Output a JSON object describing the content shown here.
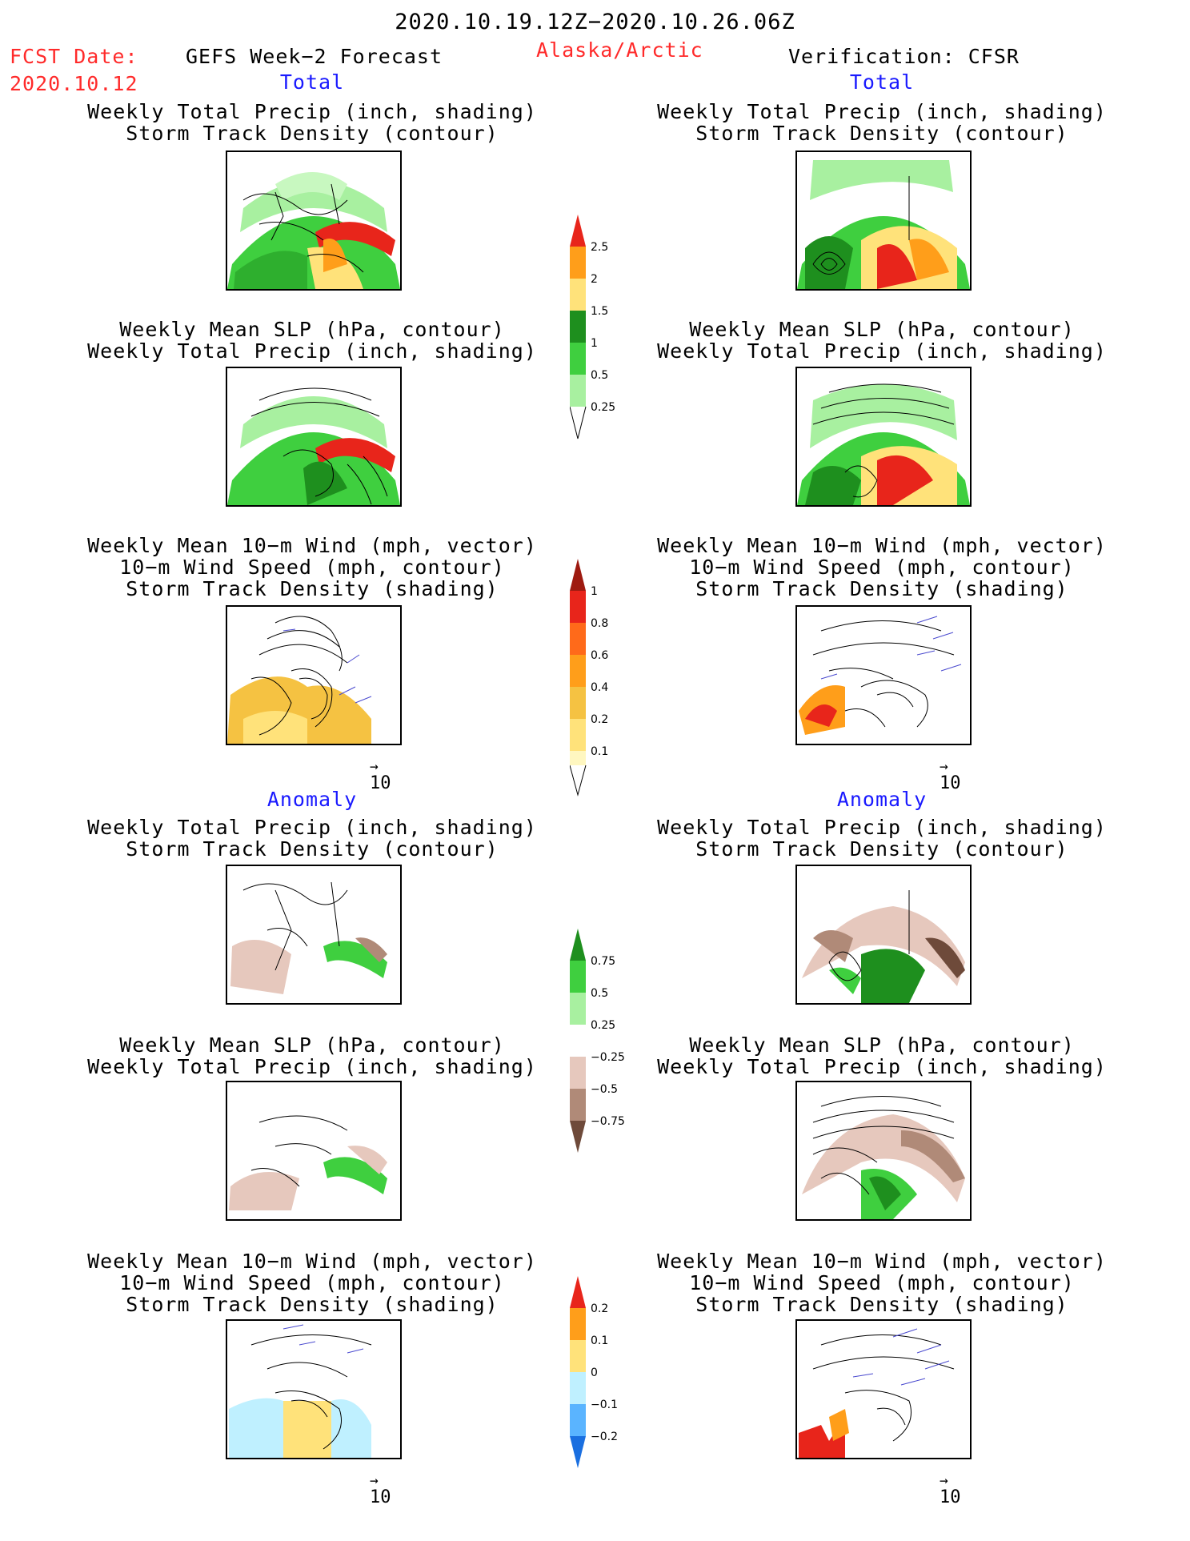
{
  "header": {
    "date_range": "2020.10.19.12Z−2020.10.26.06Z",
    "fcst_label": "FCST Date:",
    "fcst_date": "2020.10.12",
    "forecast_title": "GEFS Week−2 Forecast",
    "region": "Alaska/Arctic",
    "verification": "Verification: CFSR"
  },
  "sections": {
    "total": "Total",
    "anomaly": "Anomaly"
  },
  "titles": {
    "precip_storm": [
      "Weekly Total Precip (inch, shading)",
      "Storm Track Density (contour)"
    ],
    "slp_precip": [
      "Weekly Mean SLP (hPa, contour)",
      "Weekly Total Precip (inch, shading)"
    ],
    "wind_storm": [
      "Weekly Mean 10−m Wind (mph, vector)",
      "10−m Wind Speed (mph, contour)",
      "Storm Track Density (shading)"
    ]
  },
  "vector_ref": "10",
  "colorbars": {
    "precip_total": {
      "labels": [
        "2.5",
        "2",
        "1.5",
        "1",
        "0.5",
        "0.25"
      ],
      "colors": [
        "#e8251b",
        "#ff9e1a",
        "#ffe27a",
        "#1e8f1e",
        "#3fcf3f",
        "#a8f0a0"
      ]
    },
    "storm_total": {
      "labels": [
        "1",
        "0.8",
        "0.6",
        "0.4",
        "0.2",
        "0.1"
      ],
      "colors": [
        "#9e1a10",
        "#e8251b",
        "#ff6a1a",
        "#ff9e1a",
        "#f5c242",
        "#ffe27a",
        "#fff7c0"
      ]
    },
    "precip_anom": {
      "labels": [
        "0.75",
        "0.5",
        "0.25",
        "−0.25",
        "−0.5",
        "−0.75"
      ],
      "colors": [
        "#1e8f1e",
        "#3fcf3f",
        "#a8f0a0",
        "#ffffff",
        "#e6c8bd",
        "#b08a78",
        "#6e4a3a"
      ]
    },
    "storm_anom": {
      "labels": [
        "0.2",
        "0.1",
        "0",
        "−0.1",
        "−0.2"
      ],
      "colors": [
        "#e8251b",
        "#ff9e1a",
        "#ffe27a",
        "#bff0ff",
        "#5ab4ff",
        "#1a6fe0"
      ]
    }
  }
}
